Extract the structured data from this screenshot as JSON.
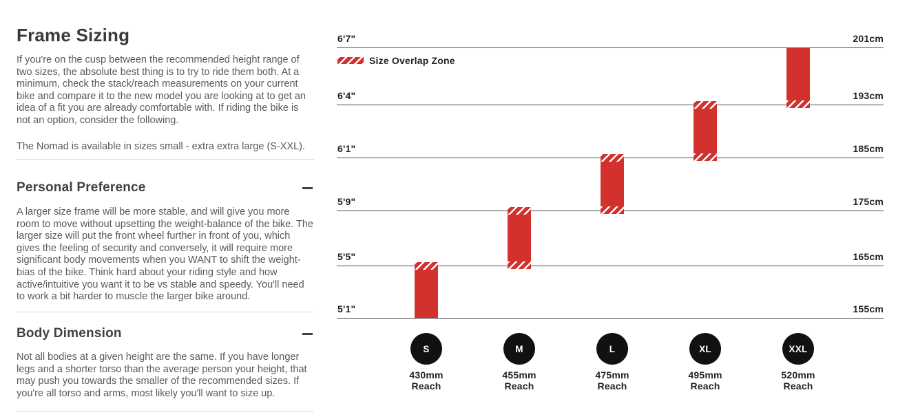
{
  "left": {
    "title": "Frame Sizing",
    "intro": "If you're on the cusp between the recommended height range of two sizes, the absolute best thing is to try to ride them both. At a minimum, check the stack/reach measurements on your current bike and compare it to the new model you are looking at to get an idea of a fit you are already comfortable with. If riding the bike is not an option, consider the following.",
    "availability": "The Nomad is available in sizes small - extra extra large (S-XXL).",
    "sections": [
      {
        "heading": "Personal Preference",
        "body": "A larger size frame will be more stable, and will give you more room to move without upsetting the weight-balance of the bike. The larger size will put the front wheel further in front of you, which gives the feeling of security and conversely, it will require more significant body movements when you WANT to shift the weight-bias of the bike. Think hard about your riding style and how active/intuitive you want it to be vs stable and speedy. You'll need to work a bit harder to muscle the larger bike around."
      },
      {
        "heading": "Body Dimension",
        "body": "Not all bodies at a given height are the same. If you have longer legs and a shorter torso than the average person your height, that may push you towards the smaller of the recommended sizes. If you're all torso and arms, most likely you'll want to size up."
      }
    ]
  },
  "chart_data": {
    "type": "bar",
    "title": "",
    "legend": "Size Overlap Zone",
    "orientation": "vertical-range-bars",
    "grid": true,
    "rows": [
      {
        "ft": "6'7\"",
        "cm": "201cm"
      },
      {
        "ft": "6'4\"",
        "cm": "193cm"
      },
      {
        "ft": "6'1\"",
        "cm": "185cm"
      },
      {
        "ft": "5'9\"",
        "cm": "175cm"
      },
      {
        "ft": "5'5\"",
        "cm": "165cm"
      },
      {
        "ft": "5'1\"",
        "cm": "155cm"
      }
    ],
    "reach_word": "Reach",
    "sizes": [
      {
        "label": "S",
        "reach": "430mm",
        "range_ft": "5'1\"-5'5\"",
        "range_cm": "155-165cm",
        "overlap_top": true,
        "overlap_bottom": false
      },
      {
        "label": "M",
        "reach": "455mm",
        "range_ft": "5'5\"-5'9\"",
        "range_cm": "165-175cm",
        "overlap_top": true,
        "overlap_bottom": true
      },
      {
        "label": "L",
        "reach": "475mm",
        "range_ft": "5'9\"-6'1\"",
        "range_cm": "175-185cm",
        "overlap_top": true,
        "overlap_bottom": true
      },
      {
        "label": "XL",
        "reach": "495mm",
        "range_ft": "6'1\"-6'4\"",
        "range_cm": "185-193cm",
        "overlap_top": true,
        "overlap_bottom": true
      },
      {
        "label": "XXL",
        "reach": "520mm",
        "range_ft": "6'4\"-6'7\"",
        "range_cm": "193-201cm",
        "overlap_top": false,
        "overlap_bottom": true
      }
    ]
  },
  "colors": {
    "bar_red": "#d2312d",
    "circle_black": "#111111",
    "label_ink": "#231f20",
    "heading": "#414042",
    "body_text": "#58595b",
    "gridline": "#4d4d4f",
    "divider": "#d8d8d8"
  }
}
